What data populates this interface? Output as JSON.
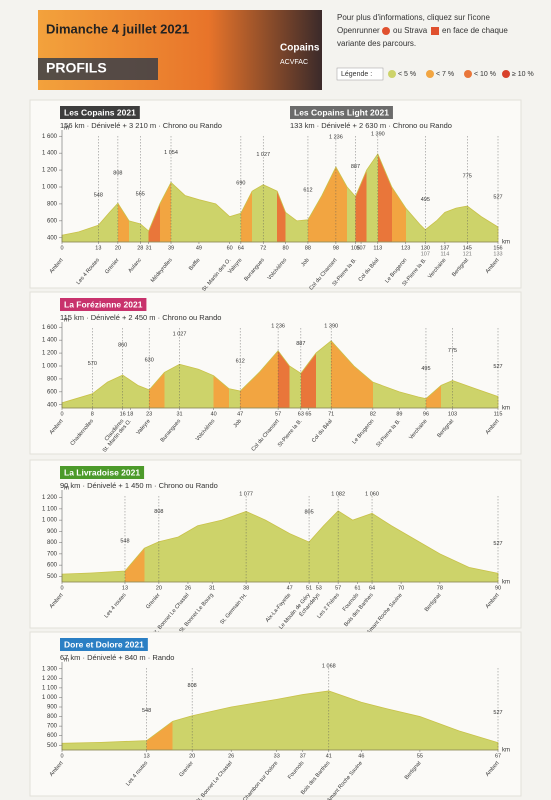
{
  "header": {
    "date": "Dimanche 4 juillet 2021",
    "heading": "PROFILS",
    "brand": "Copains",
    "club": "ACVFAC",
    "info": [
      "Pour plus d'informations, cliquez sur l'icone",
      "Openrunner",
      "ou Strava",
      "en face de chaque",
      "variante des parcours."
    ],
    "legend_title": "Légende :",
    "grades": [
      {
        "max": 5,
        "label": "< 5 %",
        "color": "#cdd36a"
      },
      {
        "max": 7,
        "label": "< 7 %",
        "color": "#f2a541"
      },
      {
        "max": 10,
        "label": "< 10 %",
        "color": "#e9763a"
      },
      {
        "min": 10,
        "label": "≥ 10 %",
        "color": "#d8412b"
      }
    ]
  },
  "chart_data": [
    {
      "type": "area",
      "title": "Les Copains 2021",
      "subtitle": "156 km · Dénivelé + 3 210 m · Chrono ou Rando",
      "title_color": "#3d3d3d",
      "title2": "Les Copains Light 2021",
      "subtitle2": "133 km · Dénivelé + 2 630 m · Chrono ou Rando",
      "title2_color": "#6b6b6b",
      "yunit": "m",
      "xunit": "km",
      "x": [
        0,
        6,
        13,
        17,
        20,
        24,
        28,
        31,
        35,
        39,
        44,
        49,
        55,
        60,
        64,
        68,
        72,
        77,
        80,
        84,
        88,
        93,
        98,
        102,
        105,
        109,
        113,
        118,
        123,
        128,
        130,
        134,
        137,
        141,
        145,
        150,
        156
      ],
      "values": [
        430,
        470,
        548,
        700,
        808,
        600,
        565,
        480,
        800,
        1054,
        900,
        850,
        800,
        650,
        690,
        950,
        1027,
        950,
        700,
        600,
        612,
        900,
        1236,
        1000,
        887,
        1200,
        1390,
        1000,
        750,
        560,
        495,
        600,
        700,
        750,
        775,
        650,
        527
      ],
      "xlim": [
        0,
        156
      ],
      "ylim": [
        350,
        1650
      ],
      "yticks": [
        {
          "value": 400,
          "label": "400"
        },
        {
          "value": 600,
          "label": "600"
        },
        {
          "value": 800,
          "label": "800"
        },
        {
          "value": 1000,
          "label": "1 000"
        },
        {
          "value": 1200,
          "label": "1 200"
        },
        {
          "value": 1400,
          "label": "1 400"
        },
        {
          "value": 1600,
          "label": "1 600"
        }
      ],
      "xticks": [
        0,
        13,
        20,
        28,
        31,
        39,
        49,
        60,
        64,
        72,
        80,
        88,
        98,
        105,
        107,
        113,
        123,
        130,
        137,
        145,
        156
      ],
      "xticks2": [
        {
          "value": 130,
          "label": "107"
        },
        {
          "value": 137,
          "label": "114"
        },
        {
          "value": 145,
          "label": "121"
        },
        {
          "value": 156,
          "label": "133"
        }
      ],
      "peaks": [
        {
          "x": 13,
          "y": 548
        },
        {
          "x": 20,
          "y": 808
        },
        {
          "x": 28,
          "y": 565
        },
        {
          "x": 39,
          "y": 1054,
          "label": "1 054"
        },
        {
          "x": 64,
          "y": 690
        },
        {
          "x": 72,
          "y": 1027,
          "label": "1 027"
        },
        {
          "x": 88,
          "y": 612
        },
        {
          "x": 98,
          "y": 1236,
          "label": "1 236"
        },
        {
          "x": 105,
          "y": 887
        },
        {
          "x": 113,
          "y": 1390,
          "label": "1 390"
        },
        {
          "x": 130,
          "y": 495
        },
        {
          "x": 145,
          "y": 775
        },
        {
          "x": 156,
          "y": 527
        }
      ],
      "places": [
        {
          "x": 0,
          "label": "Ambert"
        },
        {
          "x": 13,
          "label": "Les 4 Routes"
        },
        {
          "x": 20,
          "label": "Grenier"
        },
        {
          "x": 28,
          "label": "Aulanc"
        },
        {
          "x": 39,
          "label": "Médeyrolles"
        },
        {
          "x": 49,
          "label": "Baffie"
        },
        {
          "x": 60,
          "label": "St. Martin des O."
        },
        {
          "x": 64,
          "label": "Valeyre"
        },
        {
          "x": 72,
          "label": "Bunangues"
        },
        {
          "x": 80,
          "label": "Volcivières"
        },
        {
          "x": 88,
          "label": "Job"
        },
        {
          "x": 98,
          "label": "Col du Chansert"
        },
        {
          "x": 105,
          "label": "St-Pierre la B."
        },
        {
          "x": 113,
          "label": "Col du Béal"
        },
        {
          "x": 123,
          "label": "Le Brugeron"
        },
        {
          "x": 130,
          "label": "St-Pierre la B."
        },
        {
          "x": 137,
          "label": "Verchaine"
        },
        {
          "x": 145,
          "label": "Bertignat"
        },
        {
          "x": 156,
          "label": "Ambert"
        }
      ]
    },
    {
      "type": "area",
      "title": "La Forézienne 2021",
      "subtitle": "115 km · Dénivelé + 2 450 m · Chrono ou Rando",
      "title_color": "#c8326c",
      "yunit": "m",
      "xunit": "km",
      "x": [
        0,
        4,
        8,
        12,
        16,
        20,
        23,
        27,
        31,
        36,
        40,
        44,
        47,
        52,
        57,
        60,
        63,
        67,
        71,
        77,
        82,
        89,
        94,
        96,
        100,
        103,
        109,
        115
      ],
      "values": [
        430,
        500,
        570,
        750,
        860,
        700,
        630,
        900,
        1027,
        950,
        850,
        650,
        612,
        900,
        1236,
        1000,
        887,
        1200,
        1390,
        1000,
        750,
        600,
        520,
        495,
        700,
        775,
        650,
        527
      ],
      "xlim": [
        0,
        115
      ],
      "ylim": [
        350,
        1650
      ],
      "yticks": [
        {
          "value": 400,
          "label": "400"
        },
        {
          "value": 600,
          "label": "600"
        },
        {
          "value": 800,
          "label": "800"
        },
        {
          "value": 1000,
          "label": "1 000"
        },
        {
          "value": 1200,
          "label": "1 200"
        },
        {
          "value": 1400,
          "label": "1 400"
        },
        {
          "value": 1600,
          "label": "1 600"
        }
      ],
      "xticks": [
        0,
        8,
        16,
        18,
        23,
        31,
        40,
        47,
        57,
        63,
        65,
        71,
        82,
        89,
        96,
        103,
        115
      ],
      "peaks": [
        {
          "x": 8,
          "y": 570
        },
        {
          "x": 16,
          "y": 860
        },
        {
          "x": 23,
          "y": 630
        },
        {
          "x": 31,
          "y": 1027,
          "label": "1 027"
        },
        {
          "x": 47,
          "y": 612
        },
        {
          "x": 57,
          "y": 1236,
          "label": "1 236"
        },
        {
          "x": 63,
          "y": 887
        },
        {
          "x": 71,
          "y": 1390,
          "label": "1 390"
        },
        {
          "x": 96,
          "y": 495
        },
        {
          "x": 103,
          "y": 775
        },
        {
          "x": 115,
          "y": 527
        }
      ],
      "places": [
        {
          "x": 0,
          "label": "Ambert"
        },
        {
          "x": 8,
          "label": "Chadernolles"
        },
        {
          "x": 16,
          "label": "Claudières"
        },
        {
          "x": 18,
          "label": "St. Martin des O."
        },
        {
          "x": 23,
          "label": "Valeyre"
        },
        {
          "x": 31,
          "label": "Bunangues"
        },
        {
          "x": 40,
          "label": "Volcivières"
        },
        {
          "x": 47,
          "label": "Job"
        },
        {
          "x": 57,
          "label": "Col du Chansert"
        },
        {
          "x": 63,
          "label": "St-Pierre la B."
        },
        {
          "x": 71,
          "label": "Col du Béal"
        },
        {
          "x": 82,
          "label": "Le Brugeron"
        },
        {
          "x": 89,
          "label": "St-Pierre la B."
        },
        {
          "x": 96,
          "label": "Verchaine"
        },
        {
          "x": 103,
          "label": "Bertignat"
        },
        {
          "x": 115,
          "label": "Ambert"
        }
      ]
    },
    {
      "type": "area",
      "title": "La Livradoise 2021",
      "subtitle": "90 km · Dénivelé + 1 450 m · Chrono ou Rando",
      "title_color": "#4c9a2a",
      "yunit": "m",
      "xunit": "km",
      "x": [
        0,
        6,
        13,
        17,
        20,
        24,
        28,
        33,
        38,
        42,
        47,
        51,
        54,
        57,
        60,
        64,
        68,
        74,
        78,
        84,
        90
      ],
      "values": [
        520,
        530,
        548,
        750,
        808,
        850,
        950,
        1000,
        1077,
        1000,
        880,
        805,
        950,
        1082,
        1000,
        1060,
        950,
        800,
        700,
        580,
        527
      ],
      "xlim": [
        0,
        90
      ],
      "ylim": [
        450,
        1250
      ],
      "yticks": [
        500,
        600,
        700,
        800,
        900,
        {
          "value": 1000,
          "label": "1 000"
        },
        {
          "value": 1100,
          "label": "1 100"
        },
        {
          "value": 1200,
          "label": "1 200"
        }
      ],
      "xticks": [
        0,
        13,
        20,
        26,
        31,
        38,
        47,
        51,
        53,
        57,
        61,
        64,
        70,
        78,
        90
      ],
      "peaks": [
        {
          "x": 13,
          "y": 548
        },
        {
          "x": 20,
          "y": 808
        },
        {
          "x": 38,
          "y": 1077,
          "label": "1 077"
        },
        {
          "x": 51,
          "y": 805
        },
        {
          "x": 57,
          "y": 1082,
          "label": "1 082"
        },
        {
          "x": 64,
          "y": 1060,
          "label": "1 060"
        },
        {
          "x": 90,
          "y": 527
        }
      ],
      "places": [
        {
          "x": 0,
          "label": "Ambert"
        },
        {
          "x": 13,
          "label": "Les 4 routes"
        },
        {
          "x": 20,
          "label": "Grenier"
        },
        {
          "x": 26,
          "label": "St. Bonnet Le Chastel"
        },
        {
          "x": 31,
          "label": "St. Bonnet Le Bourg"
        },
        {
          "x": 38,
          "label": "St. Germain l'H."
        },
        {
          "x": 47,
          "label": "Aix-La-Fayette"
        },
        {
          "x": 51,
          "label": "Le Moulin de Géry"
        },
        {
          "x": 53,
          "label": "Échandelys"
        },
        {
          "x": 57,
          "label": "Les 2 Frères"
        },
        {
          "x": 61,
          "label": "Fournols"
        },
        {
          "x": 64,
          "label": "Bois des Barthes"
        },
        {
          "x": 70,
          "label": "St. Amant Roche Savine"
        },
        {
          "x": 78,
          "label": "Bertignat"
        },
        {
          "x": 90,
          "label": "Ambert"
        }
      ]
    },
    {
      "type": "area",
      "title": "Dore et Dolore 2021",
      "subtitle": "67 km · Dénivelé + 840 m · Rando",
      "title_color": "#2b7fc4",
      "yunit": "m",
      "xunit": "km",
      "x": [
        0,
        6,
        13,
        17,
        20,
        26,
        33,
        37,
        41,
        46,
        50,
        55,
        61,
        67
      ],
      "values": [
        520,
        530,
        548,
        750,
        808,
        900,
        980,
        1030,
        1068,
        950,
        880,
        800,
        650,
        527
      ],
      "xlim": [
        0,
        67
      ],
      "ylim": [
        450,
        1350
      ],
      "yticks": [
        500,
        600,
        700,
        800,
        900,
        {
          "value": 1000,
          "label": "1 000"
        },
        {
          "value": 1100,
          "label": "1 100"
        },
        {
          "value": 1200,
          "label": "1 200"
        },
        {
          "value": 1300,
          "label": "1 300"
        }
      ],
      "xticks": [
        0,
        13,
        20,
        26,
        33,
        37,
        41,
        46,
        55,
        67
      ],
      "peaks": [
        {
          "x": 13,
          "y": 548
        },
        {
          "x": 20,
          "y": 808
        },
        {
          "x": 41,
          "y": 1068,
          "label": "1 068"
        },
        {
          "x": 67,
          "y": 527
        }
      ],
      "places": [
        {
          "x": 0,
          "label": "Ambert"
        },
        {
          "x": 13,
          "label": "Les 4 routes"
        },
        {
          "x": 20,
          "label": "Grenier"
        },
        {
          "x": 26,
          "label": "St. Bonnet Le Chastel"
        },
        {
          "x": 33,
          "label": "Chambon sur Dolore"
        },
        {
          "x": 37,
          "label": "Fournols"
        },
        {
          "x": 41,
          "label": "Bois des Barthes"
        },
        {
          "x": 46,
          "label": "St. Amant Roche Savine"
        },
        {
          "x": 55,
          "label": "Bertignat"
        },
        {
          "x": 67,
          "label": "Ambert"
        }
      ]
    }
  ]
}
